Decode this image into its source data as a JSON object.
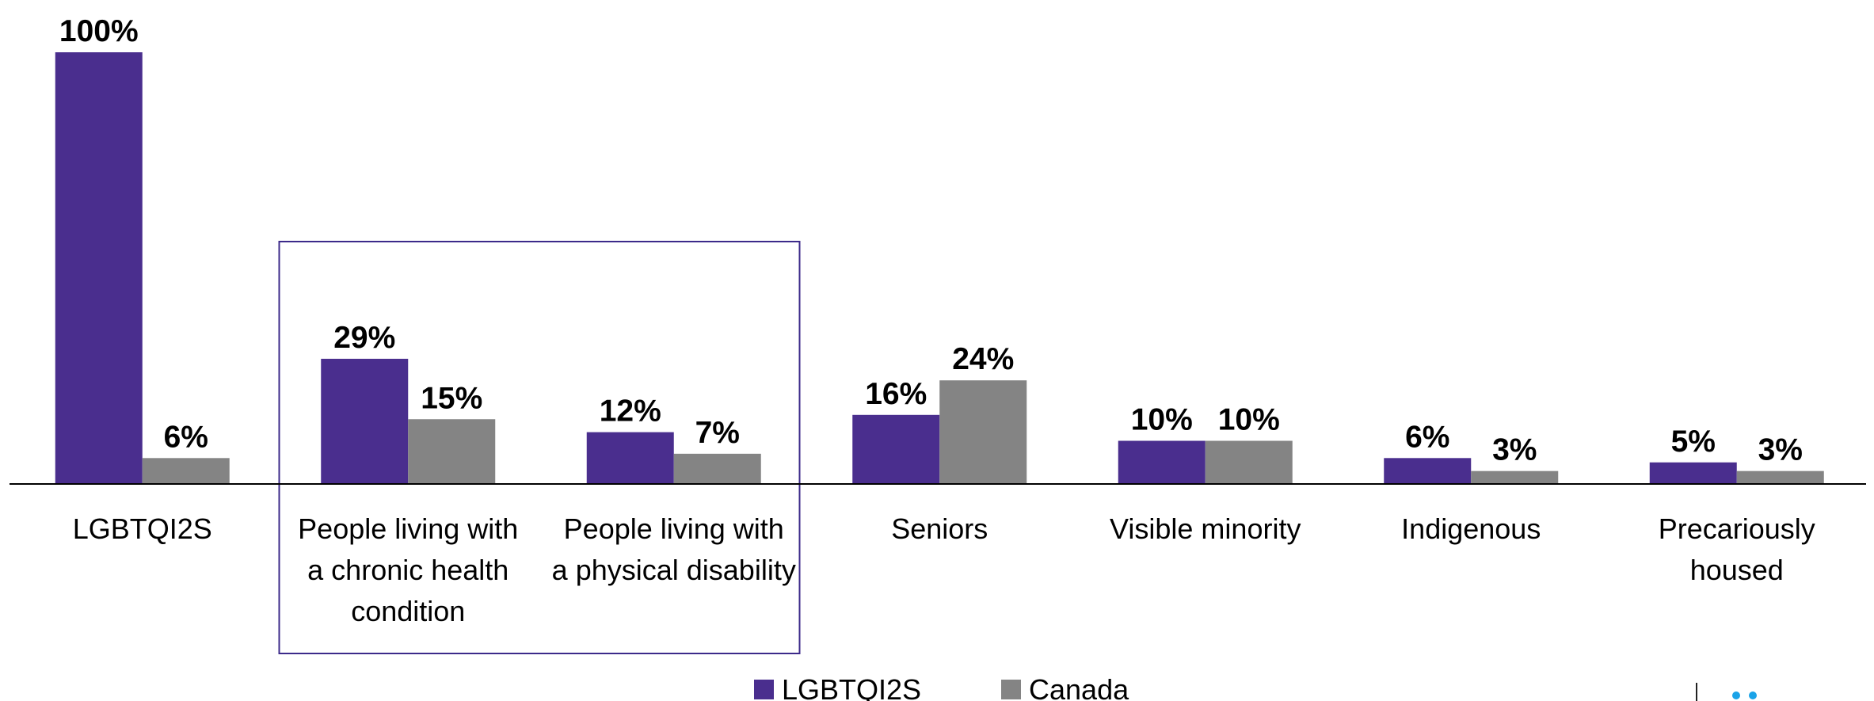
{
  "chart_data": {
    "type": "bar",
    "categories": [
      [
        "LGBTQI2S"
      ],
      [
        "People living with",
        "a chronic health",
        "condition"
      ],
      [
        "People living with",
        "a physical disability"
      ],
      [
        "Seniors"
      ],
      [
        "Visible minority"
      ],
      [
        "Indigenous"
      ],
      [
        "Precariously",
        "housed"
      ]
    ],
    "series": [
      {
        "name": "LGBTQI2S",
        "values": [
          100,
          29,
          12,
          16,
          10,
          6,
          5
        ],
        "labels": [
          "100%",
          "29%",
          "12%",
          "16%",
          "10%",
          "6%",
          "5%"
        ]
      },
      {
        "name": "Canada",
        "values": [
          6,
          15,
          7,
          24,
          10,
          3,
          3
        ],
        "labels": [
          "6%",
          "15%",
          "7%",
          "24%",
          "10%",
          "3%",
          "3%"
        ]
      }
    ],
    "ylim": [
      0,
      100
    ],
    "grid": false,
    "legend_position": "bottom",
    "highlight_box_categories": [
      1,
      2
    ]
  },
  "colors": {
    "series": [
      "#4a2e8e",
      "#848484"
    ],
    "highlight_box": "#3c2a8a",
    "axis": "#000000",
    "corner_dots": "#1aa3e8",
    "corner_tick": "#222222"
  }
}
